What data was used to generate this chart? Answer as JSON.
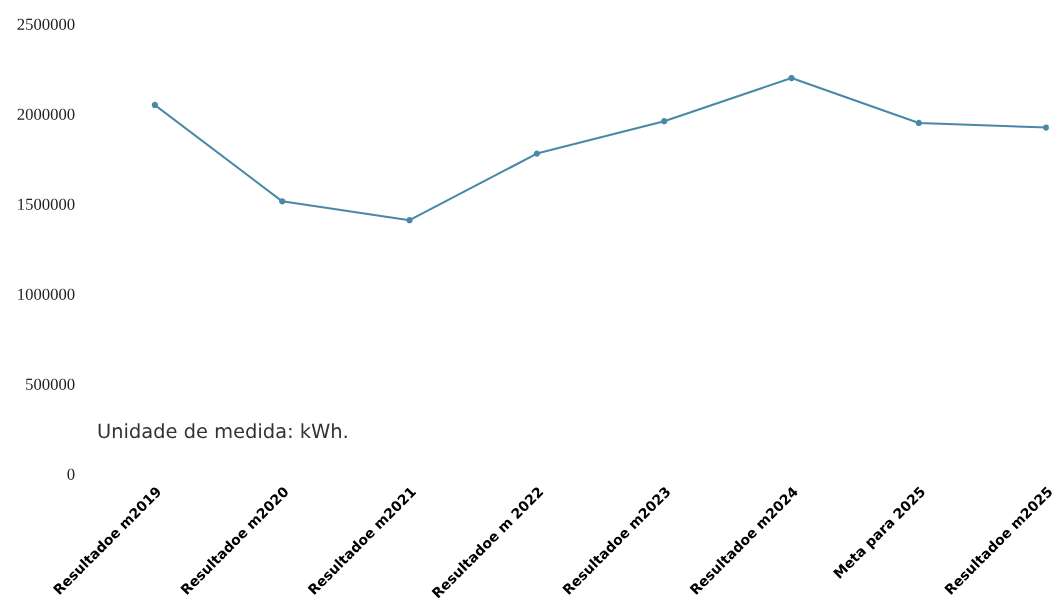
{
  "chart_data": {
    "type": "line",
    "categories": [
      "Resultadoe m2019",
      "Resultadoe m2020",
      "Resultadoe m2021",
      "Resultadoe m 2022",
      "Resultadoe m2023",
      "Resultadoe m2024",
      "Meta para 2025",
      "Resultadoe m2025"
    ],
    "series": [
      {
        "color": "#4a88a8",
        "values": [
          2050000,
          1515000,
          1410000,
          1780000,
          1960000,
          2200000,
          1950000,
          1925000
        ]
      }
    ],
    "ylim": [
      0,
      2500000
    ],
    "yticks": [
      0,
      500000,
      1000000,
      1500000,
      2000000,
      2500000
    ],
    "annotations": [
      "Unidade de medida: kWh."
    ],
    "marker": "circle",
    "line_style": "solid",
    "grid": false,
    "legend": false
  }
}
